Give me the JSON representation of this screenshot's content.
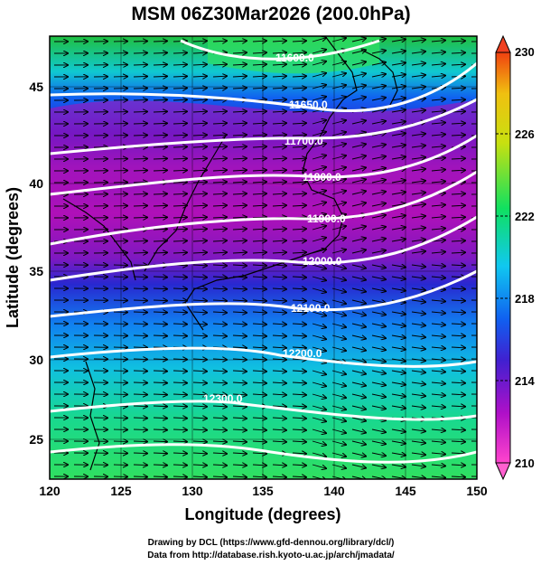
{
  "map": {
    "title": "MSM 06Z30Mar2026 (200.0hPa)",
    "xlabel": "Longitude (degrees)",
    "ylabel": "Latitude  (degrees)",
    "xlim": [
      120,
      150
    ],
    "ylim": [
      22.5,
      48
    ],
    "xticks": [
      "120",
      "125",
      "130",
      "135",
      "140",
      "145",
      "150"
    ],
    "yticks": [
      "25",
      "30",
      "35",
      "40",
      "45"
    ],
    "colorbar": {
      "min": 210,
      "max": 230,
      "ticks": [
        "210",
        "214",
        "218",
        "222",
        "226",
        "230"
      ],
      "colors": [
        "#ff44cc",
        "#b010c8",
        "#4020d0",
        "#1060f0",
        "#10c8f0",
        "#10e060",
        "#c8e010",
        "#f0c010",
        "#f04010"
      ]
    },
    "contours": [
      {
        "label": "11600.0"
      },
      {
        "label": "11650.0"
      },
      {
        "label": "11700.0"
      },
      {
        "label": "11800.0"
      },
      {
        "label": "11900.0"
      },
      {
        "label": "12000.0"
      },
      {
        "label": "12100.0"
      },
      {
        "label": "12200.0"
      },
      {
        "label": "12300.0"
      }
    ],
    "credits": {
      "line1": "Drawing by DCL (https://www.gfd-dennou.org/library/dcl/)",
      "line2": "Data from http://database.rish.kyoto-u.ac.jp/arch/jmadata/"
    }
  }
}
